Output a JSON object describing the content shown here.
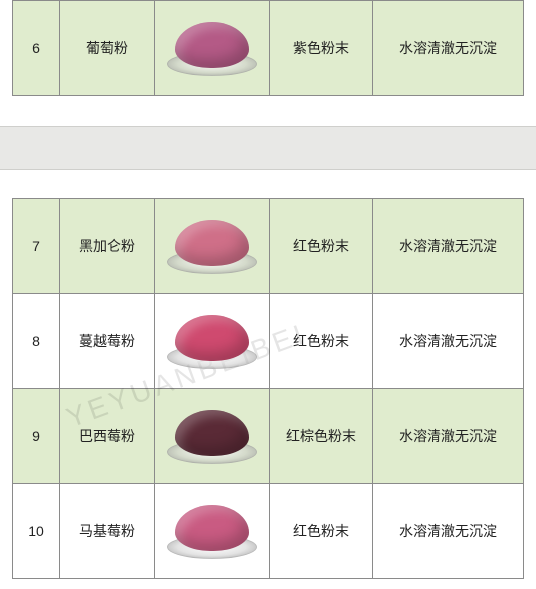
{
  "watermark_text": "YEYUANBEIBEI",
  "table1": {
    "rows": [
      {
        "num": "6",
        "name": "葡萄粉",
        "appearance": "紫色粉末",
        "solubility": "水溶清澈无沉淀",
        "powder_color": "#b45a86",
        "highlight": true
      }
    ]
  },
  "table2": {
    "rows": [
      {
        "num": "7",
        "name": "黑加仑粉",
        "appearance": "红色粉末",
        "solubility": "水溶清澈无沉淀",
        "powder_color": "#cf6f88",
        "highlight": true
      },
      {
        "num": "8",
        "name": "蔓越莓粉",
        "appearance": "红色粉末",
        "solubility": "水溶清澈无沉淀",
        "powder_color": "#cf4a6f",
        "highlight": false
      },
      {
        "num": "9",
        "name": "巴西莓粉",
        "appearance": "红棕色粉末",
        "solubility": "水溶清澈无沉淀",
        "powder_color": "#5a2a36",
        "highlight": true
      },
      {
        "num": "10",
        "name": "马基莓粉",
        "appearance": "红色粉末",
        "solubility": "水溶清澈无沉淀",
        "powder_color": "#c95b82",
        "highlight": false
      }
    ]
  },
  "colors": {
    "highlight_bg": "#e0ecce",
    "border": "#8a8a8a",
    "page_bg": "#ffffff",
    "gap_bg": "#e8e8e6"
  }
}
